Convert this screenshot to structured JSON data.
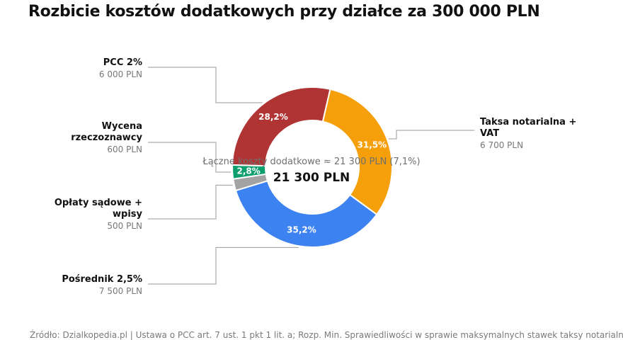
{
  "title": "Rozbicie kosztów dodatkowych przy działce za 300 000 PLN",
  "center": {
    "subtitle": "Łączne koszty dodatkowe ≈ 21 300 PLN (7,1%)",
    "total": "21 300 PLN"
  },
  "source": "Źródło: Dzialkopedia.pl | Ustawa o PCC art. 7 ust. 1 pkt 1 lit. a; Rozp. Min. Sprawiedliwości w sprawie maksymalnych stawek taksy notarialnej",
  "chart_data": {
    "type": "pie",
    "donut": true,
    "total": 21300,
    "unit": "PLN",
    "slices": [
      {
        "name": "Taksa notarialna + VAT",
        "title_lines": [
          "Taksa notarialna +",
          "VAT"
        ],
        "value": 6700,
        "value_label": "6 700 PLN",
        "pct_label": "31,5%",
        "color": "#f59f0b"
      },
      {
        "name": "Pośrednik 2,5%",
        "title_lines": [
          "Pośrednik 2,5%"
        ],
        "value": 7500,
        "value_label": "7 500 PLN",
        "pct_label": "35,2%",
        "color": "#3c82f1"
      },
      {
        "name": "Opłaty sądowe + wpisy",
        "title_lines": [
          "Opłaty sądowe +",
          "wpisy"
        ],
        "value": 500,
        "value_label": "500 PLN",
        "pct_label": "",
        "color": "#a3a3a3"
      },
      {
        "name": "Wycena rzeczoznawcy",
        "title_lines": [
          "Wycena",
          "rzeczoznawcy"
        ],
        "value": 600,
        "value_label": "600 PLN",
        "pct_label": "2,8%",
        "color": "#0e9f6e"
      },
      {
        "name": "PCC 2%",
        "title_lines": [
          "PCC 2%"
        ],
        "value": 6000,
        "value_label": "6 000 PLN",
        "pct_label": "28,2%",
        "color": "#b13434"
      }
    ]
  }
}
